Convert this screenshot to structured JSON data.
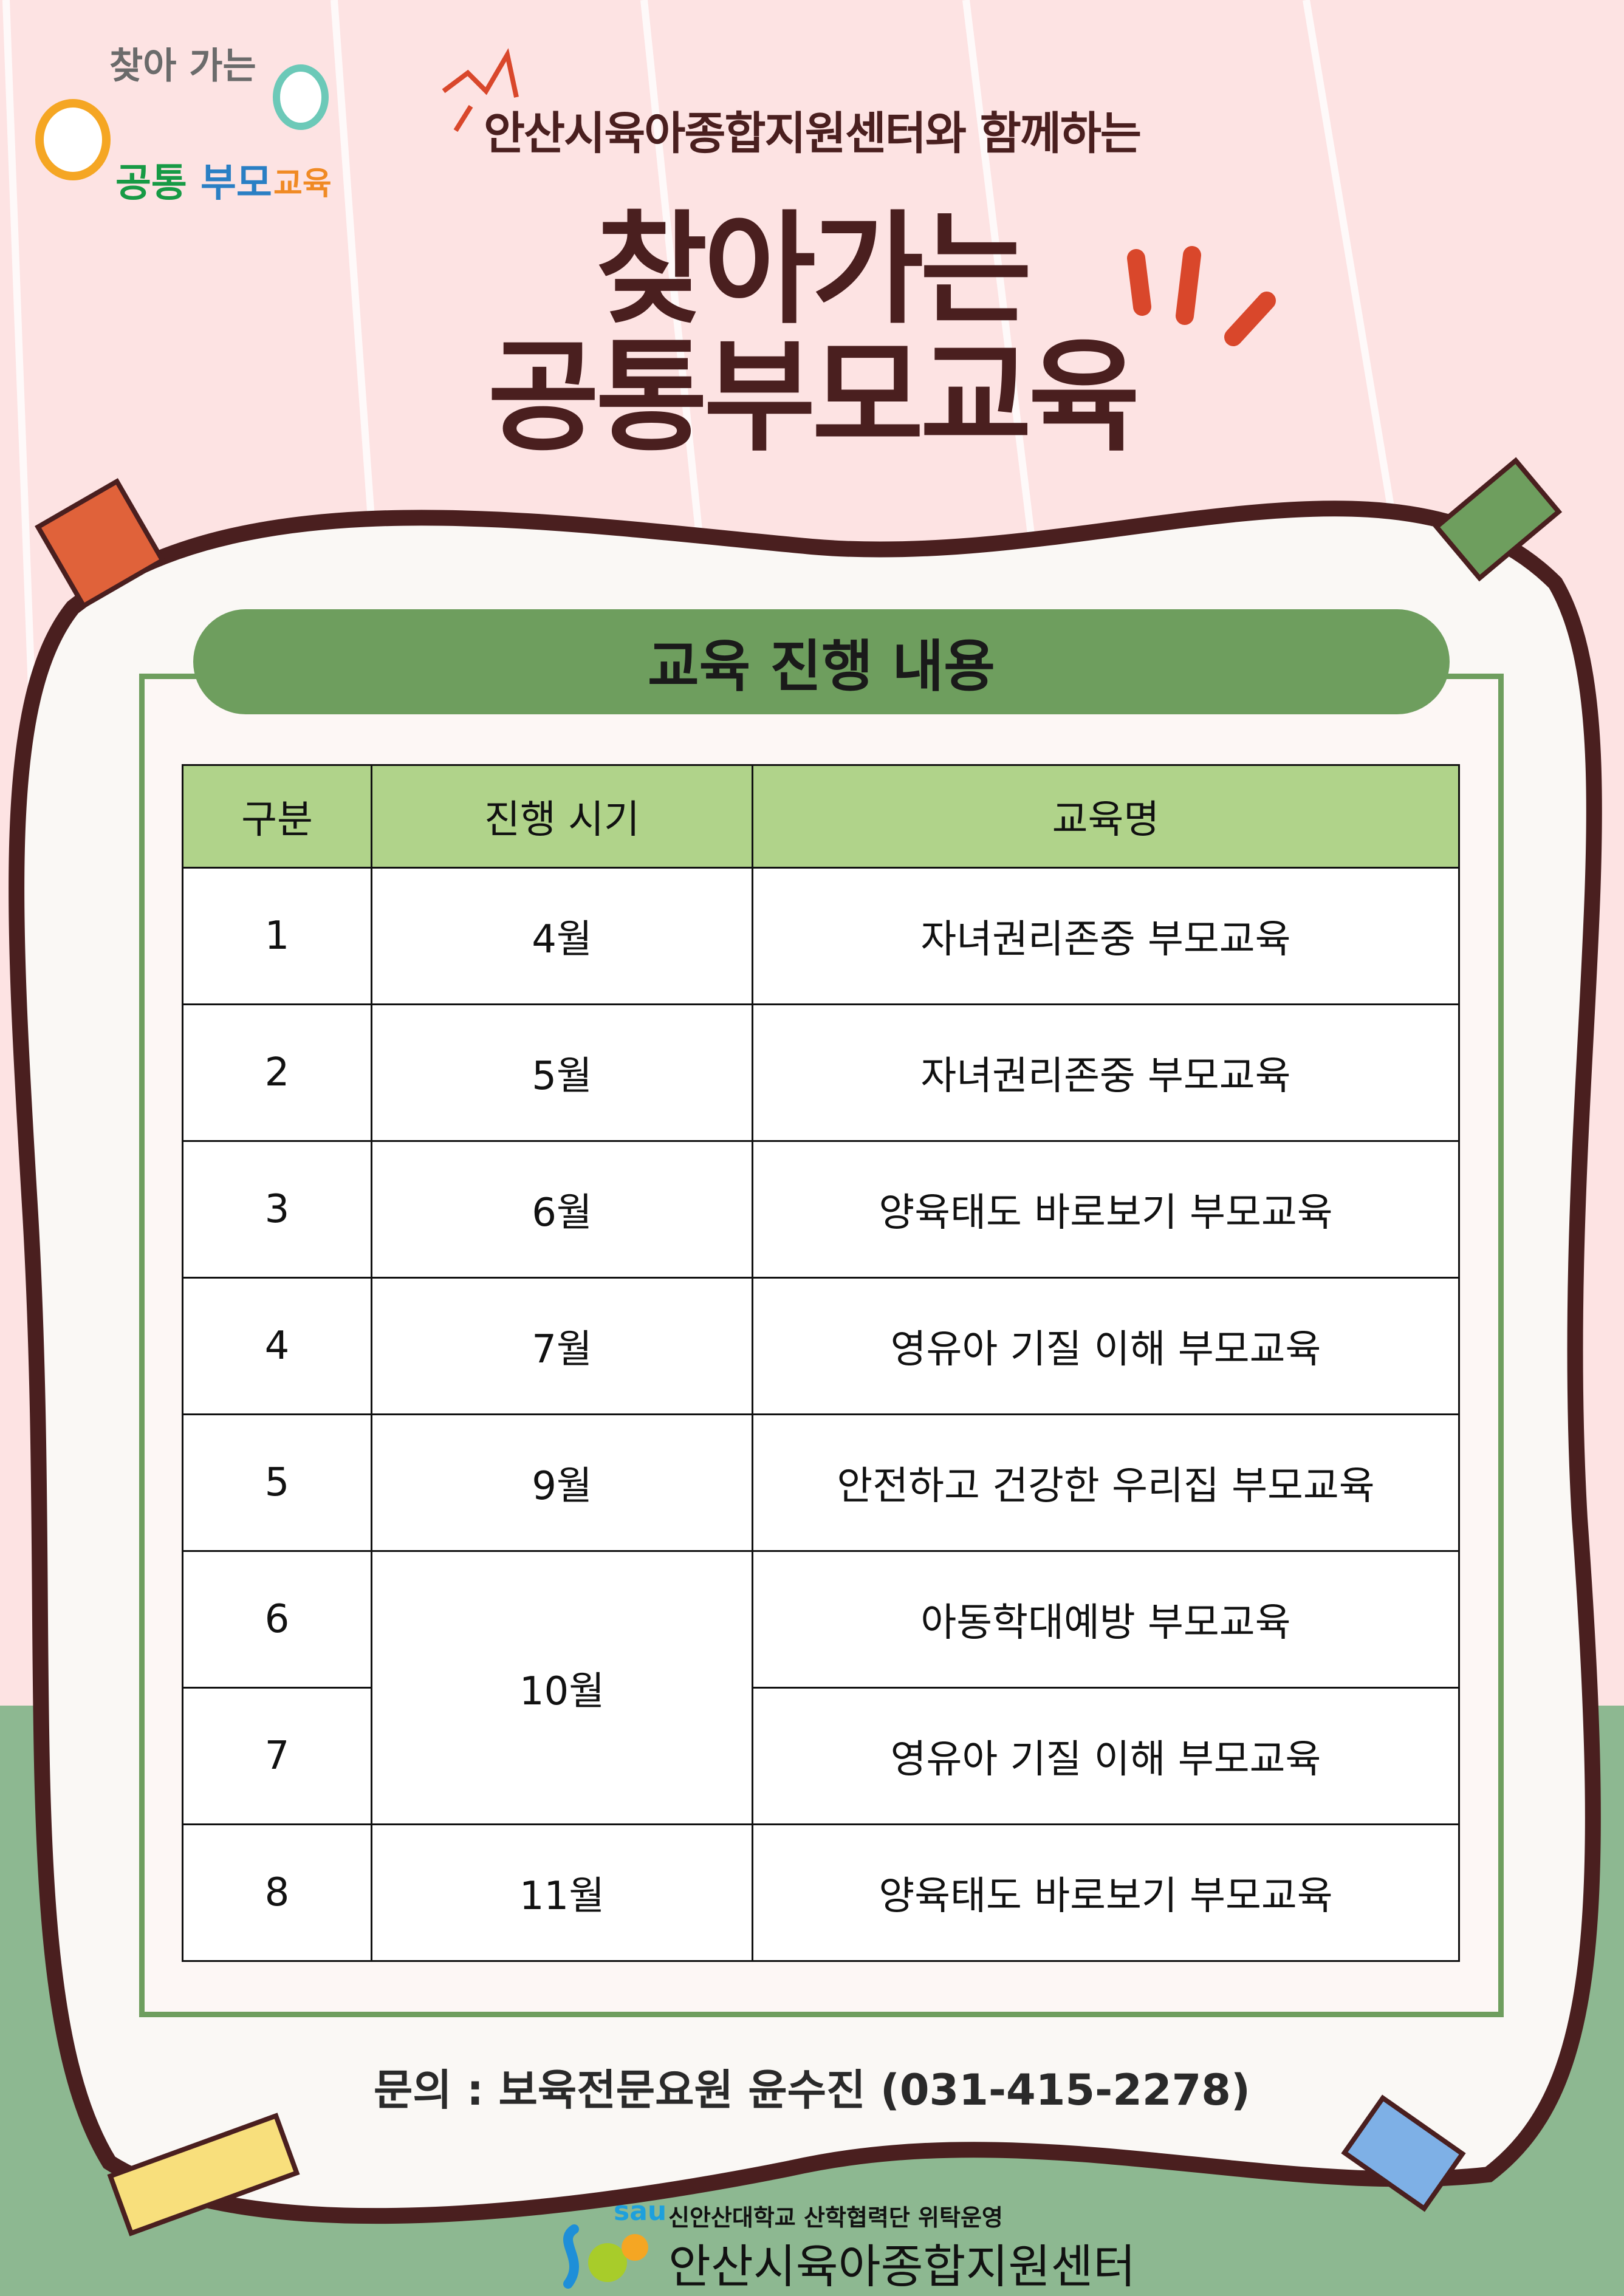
{
  "header": {
    "logo_text": "찾아가는 공통부모교육",
    "subtitle": "안산시육아종합지원센터와 함께하는",
    "title_line1": "찾아가는",
    "title_line2": "공통부모교육"
  },
  "section": {
    "title": "교육 진행 내용"
  },
  "table": {
    "headers": [
      "구분",
      "진행 시기",
      "교육명"
    ],
    "rows": [
      {
        "no": "1",
        "period": "4월",
        "name": "자녀권리존중 부모교육"
      },
      {
        "no": "2",
        "period": "5월",
        "name": "자녀권리존중 부모교육"
      },
      {
        "no": "3",
        "period": "6월",
        "name": "양육태도 바로보기 부모교육"
      },
      {
        "no": "4",
        "period": "7월",
        "name": "영유아 기질 이해 부모교육"
      },
      {
        "no": "5",
        "period": "9월",
        "name": "안전하고 건강한 우리집 부모교육"
      },
      {
        "no": "6",
        "period": "10월",
        "name": "아동학대예방 부모교육"
      },
      {
        "no": "7",
        "period": "10월",
        "name": "영유아 기질 이해 부모교육"
      },
      {
        "no": "8",
        "period": "11월",
        "name": "양육태도 바로보기 부모교육"
      }
    ]
  },
  "contact": "문의 : 보육전문요원 윤수진 (031-415-2278)",
  "footer": {
    "sau_mark": "sau",
    "operator": "신안산대학교 산학협력단 위탁운영",
    "center_name": "안산시육아종합지원센터"
  },
  "colors": {
    "background": "#fde3e3",
    "brown": "#4a1f1f",
    "green": "#6e9e5e",
    "header_green": "#b0d38a",
    "bottom_green": "#8db891",
    "accent": "#d9472b"
  }
}
